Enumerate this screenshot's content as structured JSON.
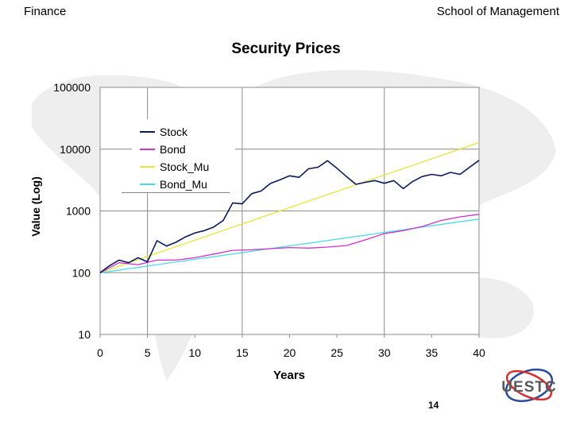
{
  "header": {
    "left_title": "Finance",
    "right_title": "School of Management"
  },
  "page_number": "14",
  "logo": {
    "text": "UESTC",
    "colors": {
      "red": "#d4312f",
      "blue": "#2a4a9a",
      "gray": "#5a5a5a"
    }
  },
  "chart_data": {
    "type": "line",
    "title": "Security Prices",
    "xlabel": "Years",
    "ylabel": "Value (Log)",
    "y_scale": "log",
    "xlim": [
      0,
      40
    ],
    "ylim": [
      10,
      100000
    ],
    "x_ticks": [
      0,
      5,
      10,
      15,
      20,
      25,
      30,
      35,
      40
    ],
    "x_tick_labels": [
      "0",
      "5",
      "10",
      "15",
      "20",
      "25",
      "30",
      "35",
      "40"
    ],
    "y_ticks": [
      10,
      100,
      1000,
      10000,
      100000
    ],
    "y_tick_labels": [
      "10",
      "100",
      "1000",
      "10000",
      "100000"
    ],
    "vertical_gridlines_at": [
      5,
      15,
      30
    ],
    "legend": [
      "Stock",
      "Bond",
      "Stock_Mu",
      "Bond_Mu"
    ],
    "legend_placement": "upper-left inside plot",
    "series": [
      {
        "name": "Stock",
        "color": "#0a1a5c",
        "x": [
          0,
          1,
          2,
          3,
          4,
          5,
          6,
          7,
          8,
          9,
          10,
          11,
          12,
          13,
          14,
          15,
          16,
          17,
          18,
          19,
          20,
          21,
          22,
          23,
          24,
          25,
          26,
          27,
          28,
          29,
          30,
          31,
          32,
          33,
          34,
          35,
          36,
          37,
          38,
          39,
          40
        ],
        "values": [
          100,
          130,
          160,
          145,
          175,
          150,
          330,
          270,
          310,
          380,
          440,
          480,
          550,
          700,
          1350,
          1300,
          1900,
          2100,
          2800,
          3200,
          3700,
          3500,
          4800,
          5100,
          6500,
          4900,
          3600,
          2700,
          2900,
          3100,
          2800,
          3100,
          2300,
          3000,
          3600,
          3900,
          3700,
          4200,
          3900,
          5100,
          6600
        ]
      },
      {
        "name": "Bond",
        "color": "#cc33cc",
        "x": [
          0,
          2,
          4,
          6,
          8,
          10,
          12,
          14,
          16,
          18,
          20,
          22,
          24,
          26,
          28,
          30,
          32,
          34,
          36,
          38,
          40
        ],
        "values": [
          100,
          145,
          135,
          160,
          160,
          175,
          200,
          230,
          235,
          245,
          255,
          250,
          260,
          275,
          340,
          430,
          480,
          560,
          700,
          800,
          880
        ]
      },
      {
        "name": "Stock_Mu",
        "color": "#e6e63c",
        "x": [
          0,
          40
        ],
        "values": [
          100,
          12800
        ]
      },
      {
        "name": "Bond_Mu",
        "color": "#4dd9e6",
        "x": [
          0,
          40
        ],
        "values": [
          100,
          740
        ]
      }
    ]
  }
}
